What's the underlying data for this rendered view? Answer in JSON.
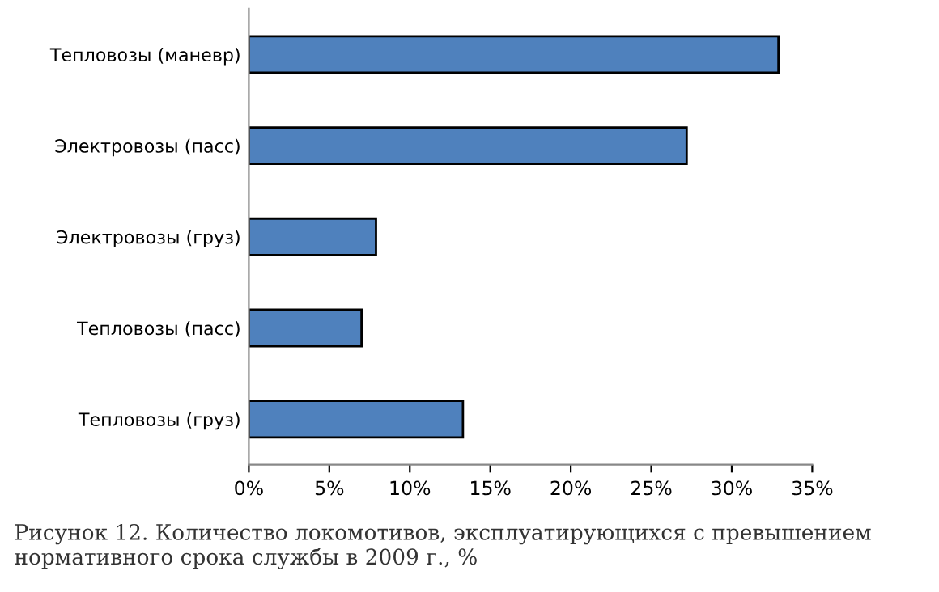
{
  "chart_data": {
    "type": "bar",
    "orientation": "horizontal",
    "categories": [
      "Тепловозы (маневр)",
      "Электровозы (пасс)",
      "Электровозы (груз)",
      "Тепловозы (пасс)",
      "Тепловозы (груз)"
    ],
    "values": [
      32.9,
      27.2,
      7.9,
      7.0,
      13.3
    ],
    "color": "#4f81bd",
    "xlim": [
      0,
      35
    ],
    "xticks": [
      {
        "value": 0,
        "label": "0%"
      },
      {
        "value": 5,
        "label": "5%"
      },
      {
        "value": 10,
        "label": "10%"
      },
      {
        "value": 15,
        "label": "15%"
      },
      {
        "value": 20,
        "label": "20%"
      },
      {
        "value": 25,
        "label": "25%"
      },
      {
        "value": 30,
        "label": "30%"
      },
      {
        "value": 35,
        "label": "35%"
      }
    ],
    "grid": false,
    "legend": false,
    "annotations": [
      "Рисунок 12. Количество локомотивов, эксплуатирующихся с превышением нормативного срока службы в 2009 г., %"
    ]
  }
}
